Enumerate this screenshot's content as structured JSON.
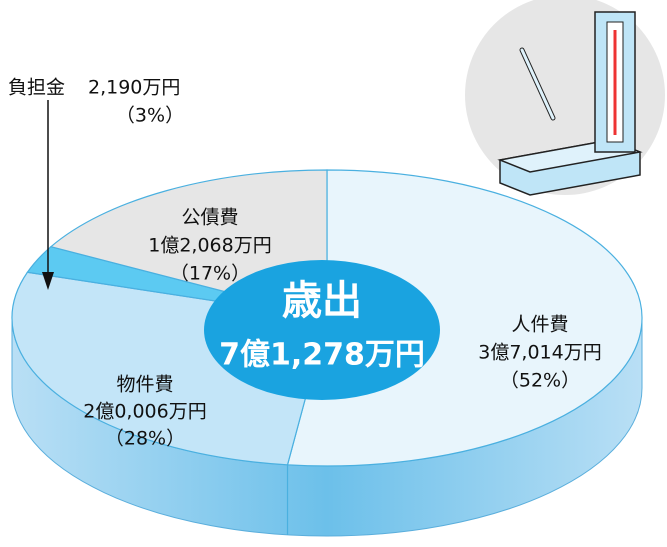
{
  "chart_data": {
    "type": "pie",
    "title": "歳出",
    "total": "7億1,278万円",
    "categories": [
      "人件費",
      "物件費",
      "負担金",
      "公債費"
    ],
    "amounts": [
      "3億7,014万円",
      "2億0,006万円",
      "2,190万円",
      "1億2,068万円"
    ],
    "values": [
      52,
      28,
      3,
      17
    ],
    "value_labels": [
      "（52%）",
      "（28%）",
      "（3%）",
      "（17%）"
    ],
    "colors": [
      "#e8f5fc",
      "#c3e5f8",
      "#5ccaf2",
      "#e6e6e6"
    ]
  }
}
